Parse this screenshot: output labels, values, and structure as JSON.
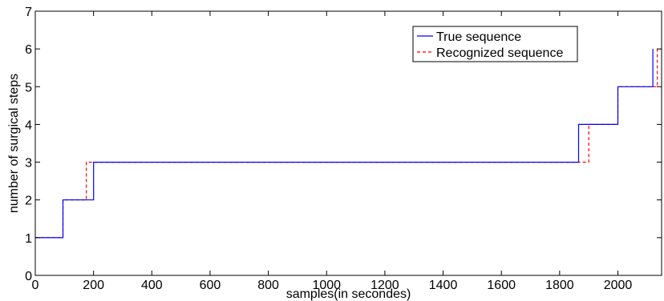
{
  "chart_data": {
    "type": "line",
    "title": "",
    "xlabel": "samples(in secondes)",
    "ylabel": "number of surgical steps",
    "xlim": [
      0,
      2150
    ],
    "ylim": [
      0,
      7
    ],
    "xticks": [
      0,
      200,
      400,
      600,
      800,
      1000,
      1200,
      1400,
      1600,
      1800,
      2000
    ],
    "yticks": [
      0,
      1,
      2,
      3,
      4,
      5,
      6,
      7
    ],
    "grid": false,
    "legend_position": "top-right",
    "series": [
      {
        "name": "True sequence",
        "color": "#0000ff",
        "style": "solid",
        "x": [
          0,
          95,
          95,
          200,
          200,
          1865,
          1865,
          2000,
          2000,
          2120,
          2120
        ],
        "y": [
          1,
          1,
          2,
          2,
          3,
          3,
          4,
          4,
          5,
          5,
          6
        ]
      },
      {
        "name": "Recognized sequence",
        "color": "#ff0000",
        "style": "dashed",
        "x": [
          0,
          95,
          95,
          175,
          175,
          1900,
          1900,
          2000,
          2000,
          2135,
          2135,
          2150
        ],
        "y": [
          1,
          1,
          2,
          2,
          3,
          3,
          4,
          4,
          5,
          5,
          6,
          6
        ]
      }
    ]
  }
}
